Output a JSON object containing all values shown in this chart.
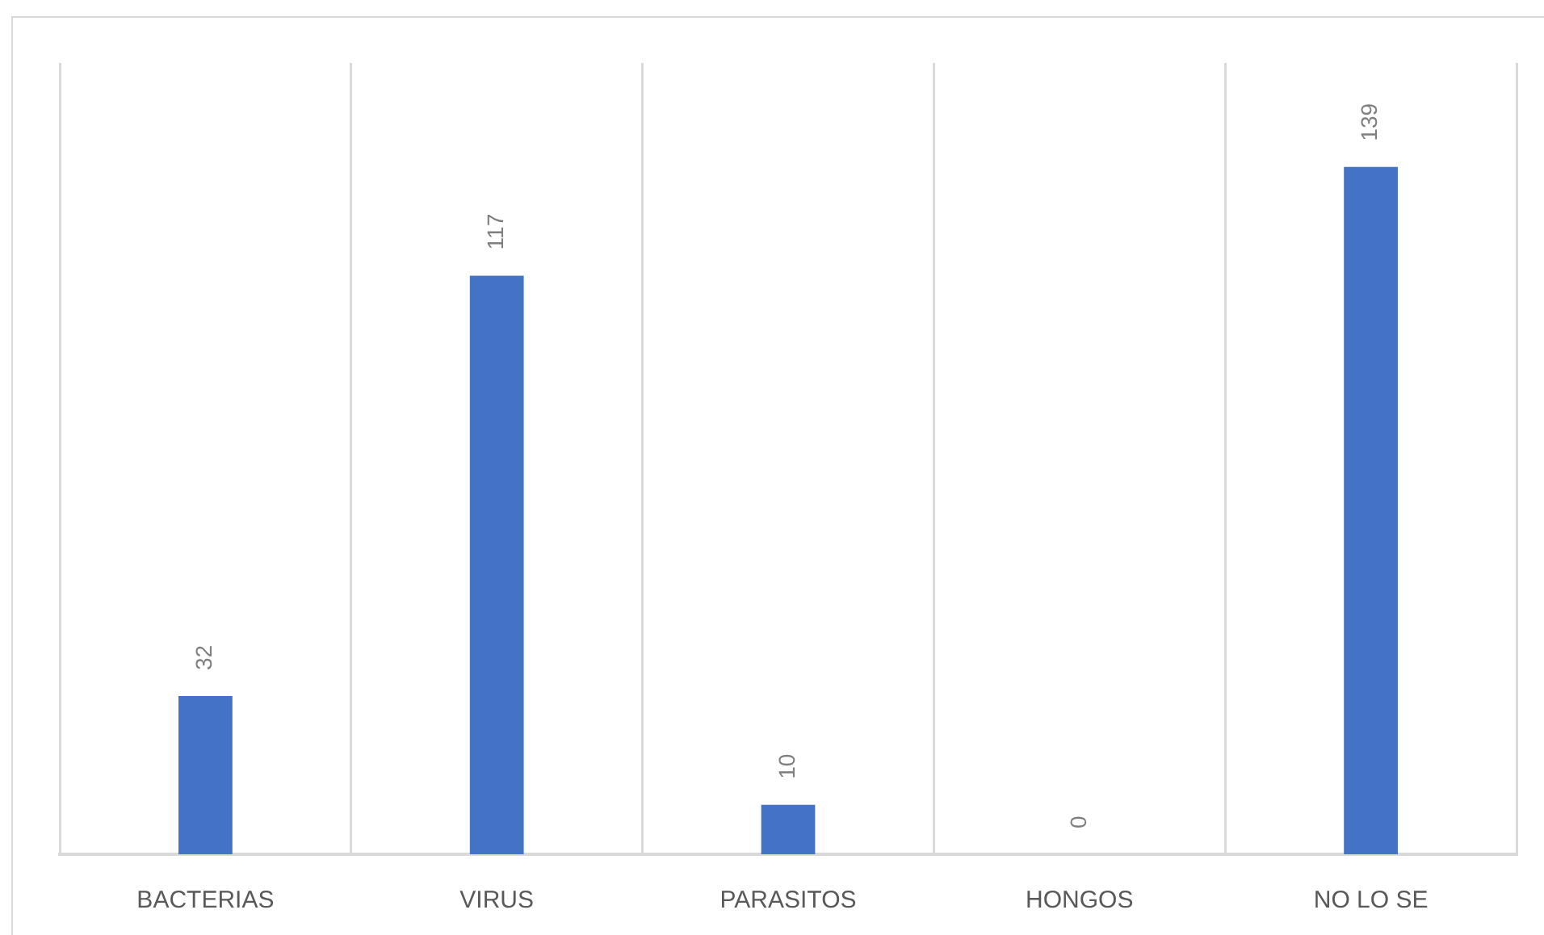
{
  "chart_data": {
    "type": "bar",
    "categories": [
      "BACTERIAS",
      "VIRUS",
      "PARASITOS",
      "HONGOS",
      "NO LO SE"
    ],
    "values": [
      32,
      117,
      10,
      0,
      139
    ],
    "color": "#4472c4",
    "ylim": [
      0,
      160
    ],
    "data_labels": true,
    "grid": "x",
    "tick_labels": "x"
  }
}
